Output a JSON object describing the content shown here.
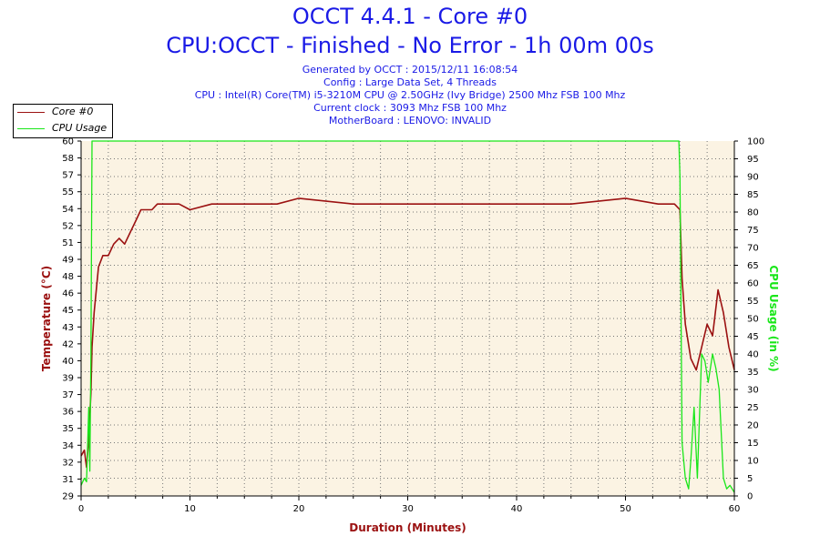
{
  "header": {
    "title": "OCCT 4.4.1 - Core #0",
    "subtitle": "CPU:OCCT - Finished - No Error - 1h 00m 00s",
    "info": [
      "Generated by OCCT : 2015/12/11 16:08:54",
      "Config : Large Data Set, 4 Threads",
      "CPU : Intel(R) Core(TM) i5-3210M CPU @ 2.50GHz (Ivy Bridge) 2500 Mhz FSB 100 Mhz",
      "Current clock : 3093 Mhz FSB 100 Mhz",
      "MotherBoard : LENOVO: INVALID"
    ]
  },
  "legend": {
    "items": [
      {
        "label": "Core #0",
        "color": "#9b1111"
      },
      {
        "label": "CPU Usage",
        "color": "#19e619"
      }
    ]
  },
  "chart_data": {
    "type": "line",
    "xlabel": "Duration (Minutes)",
    "ylabel": "Temperature (°C)",
    "y2label": "CPU Usage (in %)",
    "xlim": [
      0,
      60
    ],
    "ylim": [
      29,
      60
    ],
    "y2lim": [
      0,
      100
    ],
    "x_ticks": [
      "0",
      "10",
      "20",
      "30",
      "40",
      "50",
      "60"
    ],
    "y_ticks": [
      "29",
      "31",
      "32",
      "34",
      "35",
      "36",
      "37",
      "39",
      "40",
      "42",
      "43",
      "45",
      "46",
      "48",
      "49",
      "51",
      "52",
      "54",
      "55",
      "57",
      "58",
      "60"
    ],
    "y2_ticks": [
      "0",
      "5",
      "10",
      "15",
      "20",
      "25",
      "30",
      "35",
      "40",
      "45",
      "50",
      "55",
      "60",
      "65",
      "70",
      "75",
      "80",
      "85",
      "90",
      "95",
      "100"
    ],
    "grid": true,
    "series": [
      {
        "name": "Core #0",
        "axis": "left",
        "color": "#9b1111",
        "x": [
          0.0,
          0.3,
          0.5,
          0.7,
          0.9,
          1.0,
          1.2,
          1.4,
          1.6,
          2.0,
          2.5,
          3.0,
          3.5,
          4.0,
          4.5,
          5.0,
          5.5,
          6.0,
          6.5,
          7.0,
          8.0,
          9.0,
          10.0,
          12.0,
          15.0,
          18.0,
          20.0,
          25.0,
          30.0,
          35.0,
          40.0,
          45.0,
          50.0,
          53.0,
          54.5,
          55.0,
          55.2,
          55.5,
          56.0,
          56.5,
          57.0,
          57.5,
          58.0,
          58.5,
          59.0,
          59.5,
          60.0
        ],
        "y": [
          32.5,
          33,
          31.5,
          34,
          38,
          42,
          45,
          47,
          49,
          50,
          50,
          51,
          51.5,
          51,
          52,
          53,
          54,
          54,
          54,
          54.5,
          54.5,
          54.5,
          54,
          54.5,
          54.5,
          54.5,
          55,
          54.5,
          54.5,
          54.5,
          54.5,
          54.5,
          55,
          54.5,
          54.5,
          54,
          48,
          44,
          41,
          40,
          42,
          44,
          43,
          47,
          45,
          42,
          40
        ]
      },
      {
        "name": "CPU Usage",
        "axis": "right",
        "color": "#19e619",
        "x": [
          0.0,
          0.3,
          0.5,
          0.7,
          0.8,
          0.9,
          1.0,
          54.7,
          54.9,
          55.0,
          55.2,
          55.5,
          55.8,
          56.0,
          56.3,
          56.6,
          57.0,
          57.3,
          57.6,
          58.0,
          58.3,
          58.6,
          59.0,
          59.3,
          59.6,
          60.0
        ],
        "y": [
          3,
          5,
          4,
          25,
          7,
          40,
          100,
          100,
          100,
          90,
          15,
          5,
          2,
          10,
          25,
          5,
          40,
          38,
          32,
          40,
          36,
          30,
          5,
          2,
          3,
          1
        ]
      }
    ]
  }
}
